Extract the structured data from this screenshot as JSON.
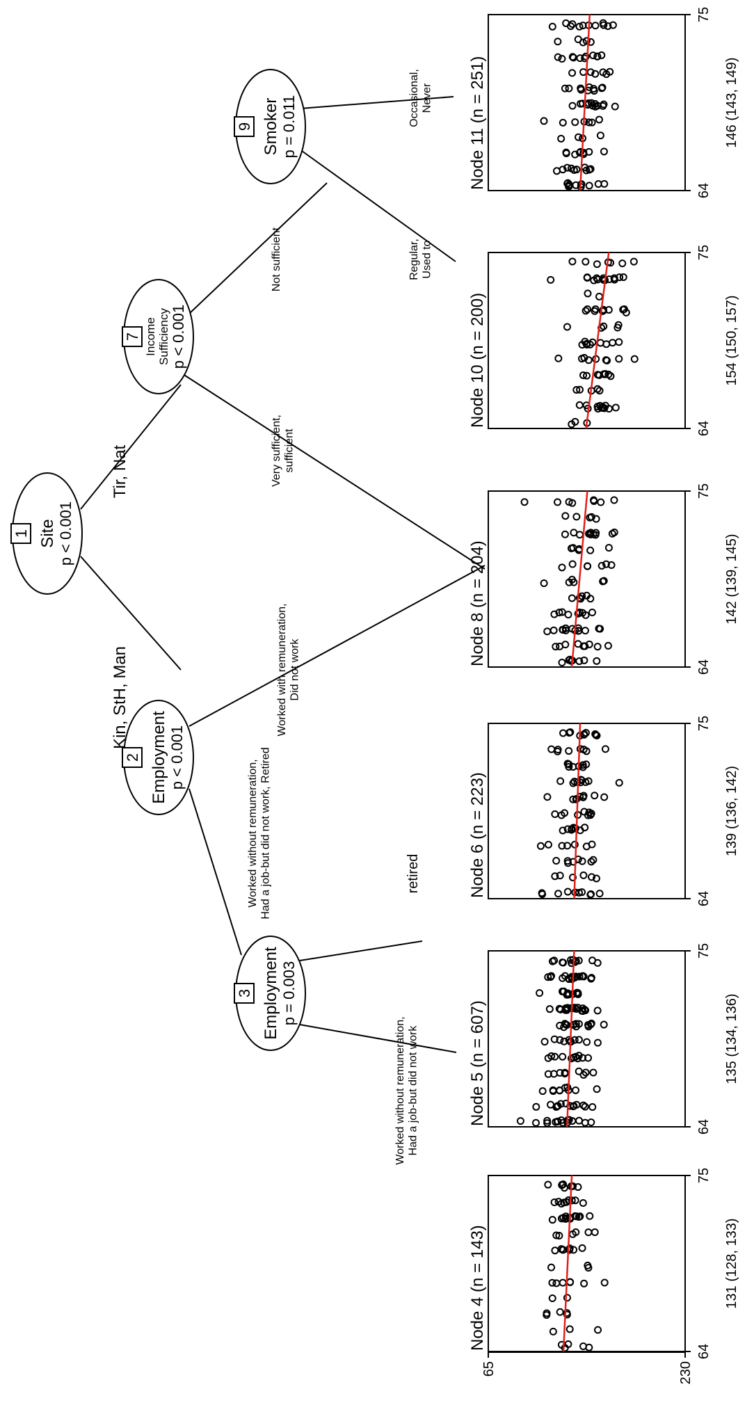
{
  "tree": {
    "nodes": [
      {
        "id": "1",
        "label": "Site",
        "p": "p < 0.001"
      },
      {
        "id": "2",
        "label": "Employment",
        "p": "p < 0.001"
      },
      {
        "id": "3",
        "label": "Employment",
        "p": "p = 0.003"
      },
      {
        "id": "7",
        "label_lines": [
          "Income",
          "Sufficiency"
        ],
        "p": "p < 0.001"
      },
      {
        "id": "9",
        "label": "Smoker",
        "p": "p = 0.011"
      }
    ],
    "edges": [
      {
        "from": "1",
        "to": "2",
        "label_lines": [
          "Kin, StH, Man"
        ]
      },
      {
        "from": "1",
        "to": "7",
        "label_lines": [
          "Tir, Nat"
        ]
      },
      {
        "from": "2",
        "to": "3",
        "label_lines": [
          "Worked without remuneration,",
          "Had a job-but did not work, Retired"
        ]
      },
      {
        "from": "2",
        "to": "6",
        "label_lines": [
          "Worked with remuneration,",
          "Did not work"
        ]
      },
      {
        "from": "3",
        "to": "4",
        "label_lines": [
          "Worked without remuneration,",
          "Had a job-but did not work"
        ]
      },
      {
        "from": "3",
        "to": "5",
        "label_lines": [
          "retired"
        ]
      },
      {
        "from": "7",
        "to": "8",
        "label_lines": [
          "Very sufficient,",
          "sufficient"
        ]
      },
      {
        "from": "7",
        "to": "9",
        "label_lines": [
          "Not sufficient"
        ]
      },
      {
        "from": "9",
        "to": "10",
        "label_lines": [
          "Regular,",
          "Used to"
        ]
      },
      {
        "from": "9",
        "to": "11",
        "label_lines": [
          "Occasional,",
          "Never"
        ]
      }
    ]
  },
  "chart_data": {
    "type": "scatter",
    "x_axis": {
      "ticks": [
        "64",
        "75"
      ],
      "range": [
        64,
        75
      ]
    },
    "y_axis": {
      "ticks": [
        "230",
        "65"
      ],
      "range": [
        65,
        230
      ]
    },
    "panels": [
      {
        "title": "Node 4 (n = 143)",
        "summary": "131 (128, 133)",
        "fit": [
          128,
          135
        ]
      },
      {
        "title": "Node 5 (n = 607)",
        "summary": "135 (134, 136)",
        "fit": [
          131,
          137
        ]
      },
      {
        "title": "Node 6 (n = 223)",
        "summary": "139 (136, 142)",
        "fit": [
          137,
          142
        ]
      },
      {
        "title": "Node 8 (n = 204)",
        "summary": "142 (139, 145)",
        "fit": [
          135,
          148
        ]
      },
      {
        "title": "Node 10 (n = 200)",
        "summary": "154 (150, 157)",
        "fit": [
          147,
          166
        ]
      },
      {
        "title": "Node 11 (n = 251)",
        "summary": "146 (143, 149)",
        "fit": [
          142,
          150
        ]
      }
    ]
  }
}
